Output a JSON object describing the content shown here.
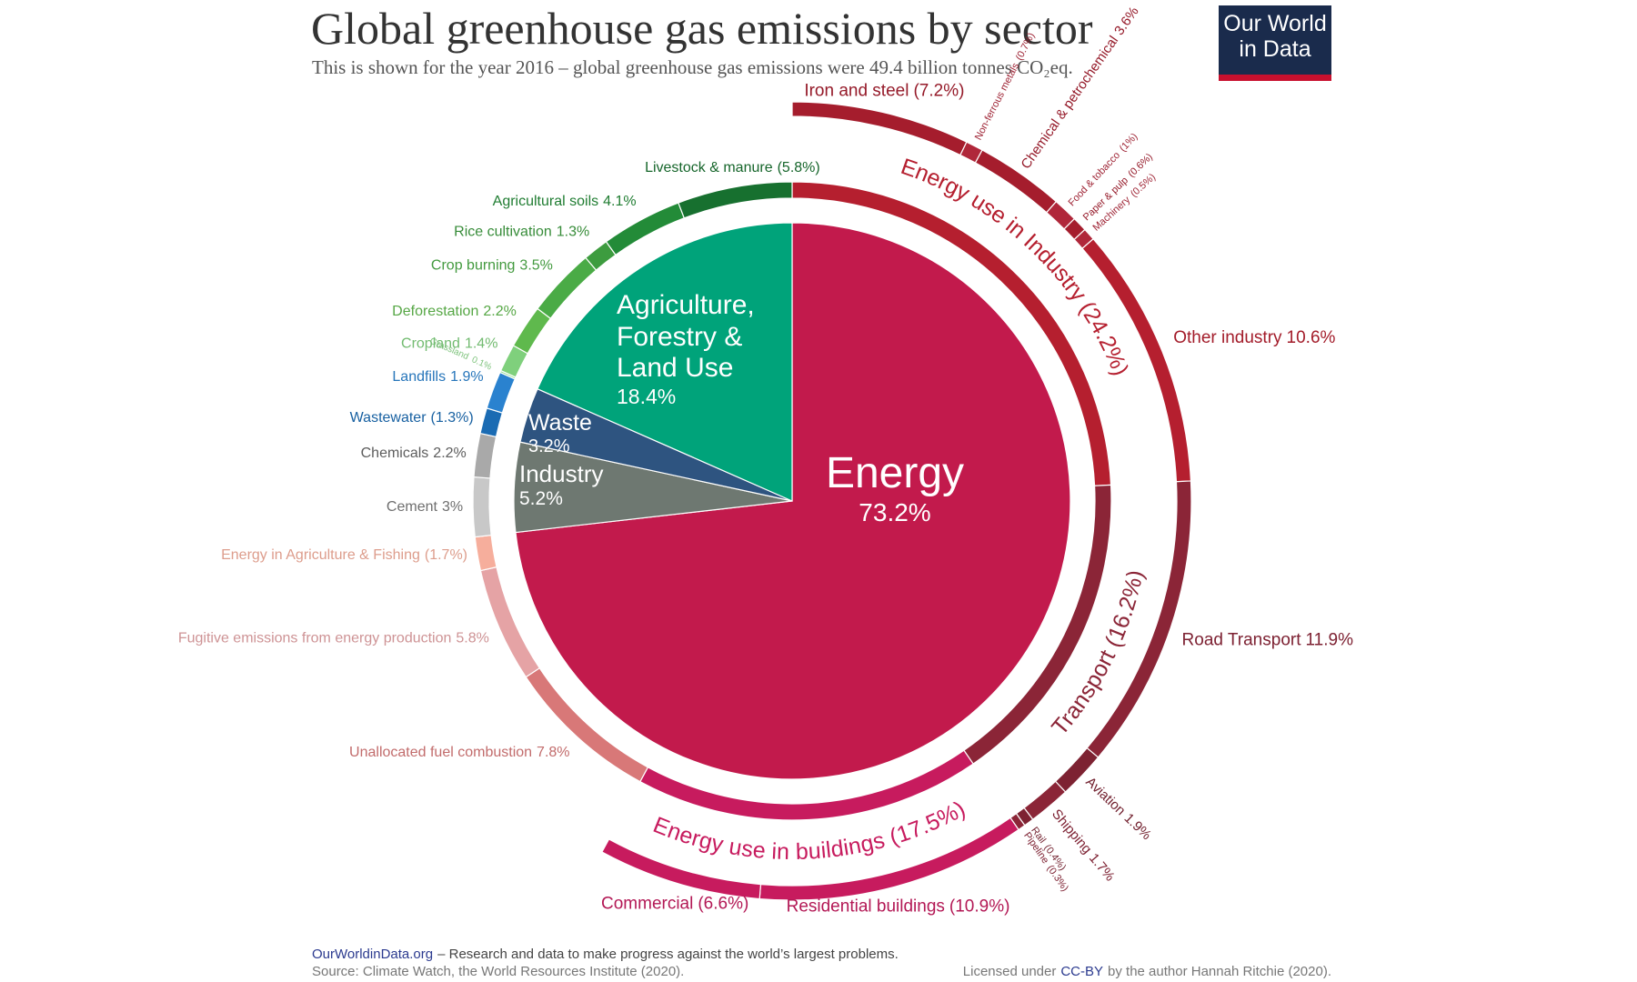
{
  "title": "Global greenhouse gas emissions by sector",
  "subtitle": "This is shown for the year 2016 – global greenhouse gas emissions were 49.4 billion tonnes CO₂eq.",
  "logo": "Our World in Data",
  "chart_data": {
    "type": "sunburst",
    "inner": {
      "labels": [
        "Energy",
        "Industry",
        "Waste",
        "Agriculture, Forestry & Land Use"
      ],
      "values": [
        73.2,
        5.2,
        3.2,
        18.4
      ],
      "value_labels": [
        "73.2%",
        "5.2%",
        "3.2%",
        "18.4%"
      ],
      "colors": [
        "#c21a4c",
        "#6e7871",
        "#2e5480",
        "#00a37a"
      ]
    },
    "middle": {
      "labels": [
        "Energy use in Industry",
        "Transport",
        "Energy use in buildings",
        "Unallocated fuel combustion",
        "Fugitive emissions from energy production",
        "Energy in Agriculture & Fishing",
        "Cement",
        "Chemicals",
        "Wastewater",
        "Landfills",
        "Grassland",
        "Cropland",
        "Deforestation",
        "Crop burning",
        "Rice cultivation",
        "Agricultural soils",
        "Livestock & manure"
      ],
      "values": [
        24.2,
        16.2,
        17.5,
        7.8,
        5.8,
        1.7,
        3,
        2.2,
        1.3,
        1.9,
        0.1,
        1.4,
        2.2,
        3.5,
        1.3,
        4.1,
        5.8
      ],
      "value_labels": [
        "(24.2%)",
        "(16.2%)",
        "(17.5%)",
        "7.8%",
        "5.8%",
        "(1.7%)",
        "3%",
        "2.2%",
        "(1.3%)",
        "1.9%",
        "0.1%",
        "1.4%",
        "2.2%",
        "3.5%",
        "1.3%",
        "4.1%",
        "(5.8%)"
      ],
      "colors": [
        "#b51f2f",
        "#8b2537",
        "#c71b5e",
        "#d87878",
        "#e5a3a5",
        "#f6ae9c",
        "#c8c8c8",
        "#a9a9a9",
        "#1a6bb3",
        "#2a82cf",
        "#8cd98a",
        "#7fd07c",
        "#5fb94d",
        "#4aab46",
        "#3d9c3f",
        "#238b38",
        "#17702f"
      ]
    },
    "outer": {
      "labels": [
        "Iron and steel",
        "Non-ferrous metals",
        "Chemical & petrochemical",
        "Food & tobacco",
        "Paper & pulp",
        "Machinery",
        "Other industry",
        "Road Transport",
        "Aviation",
        "Shipping",
        "Rail",
        "Pipeline",
        "Residential buildings",
        "Commercial"
      ],
      "values": [
        7.2,
        0.7,
        3.6,
        1,
        0.6,
        0.5,
        10.6,
        11.9,
        1.9,
        1.7,
        0.4,
        0.3,
        10.9,
        6.6
      ],
      "value_labels": [
        "(7.2%)",
        "(0.7%)",
        "3.6%",
        "(1%)",
        "(0.6%)",
        "(0.5%)",
        "10.6%",
        "11.9%",
        "1.9%",
        "1.7%",
        "(0.4%)",
        "(0.3%)",
        "(10.9%)",
        "(6.6%)"
      ],
      "colors": [
        "#a51d2d",
        "#b0273a",
        "#a51d2d",
        "#b0273a",
        "#a51d2d",
        "#b0273a",
        "#b51f2f",
        "#8b2537",
        "#7d2232",
        "#8b2537",
        "#7d2232",
        "#8b2537",
        "#c71b5e",
        "#c71b5e"
      ]
    }
  },
  "footer": {
    "site": "OurWorldinData.org",
    "tagline": "– Research and data to make progress against the world’s largest problems.",
    "source": "Source: Climate Watch, the World Resources Institute (2020).",
    "license_prefix": "Licensed under",
    "license_link": "CC-BY",
    "license_suffix": "by the author Hannah Ritchie  (2020)."
  }
}
